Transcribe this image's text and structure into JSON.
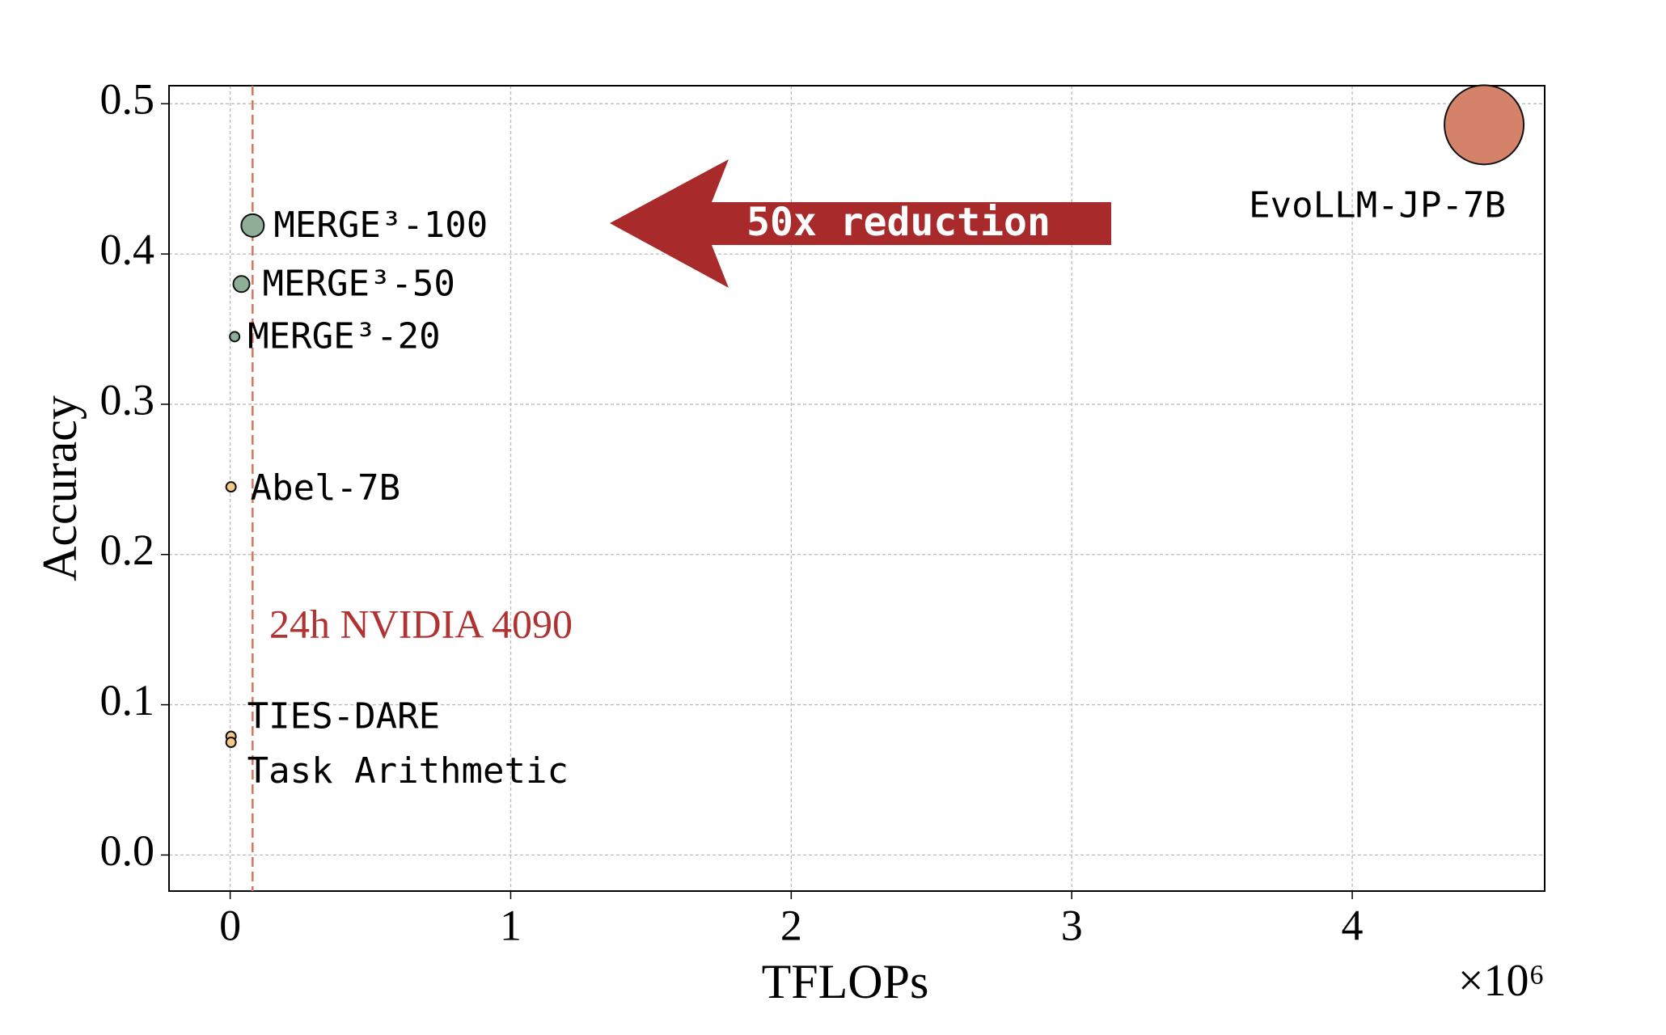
{
  "chart_data": {
    "type": "scatter",
    "x_label": "TFLOPs",
    "y_label": "Accuracy",
    "x_offset_label": "×10⁶",
    "point_labels": [
      "MERGE³-100",
      "MERGE³-50",
      "MERGE³-20",
      "Abel-7B",
      "TIES-DARE",
      "Task Arithmetic",
      "EvoLLM-JP-7B"
    ],
    "x": [
      0.08,
      0.04,
      0.016,
      0.003,
      0.003,
      0.003,
      4.47
    ],
    "values": [
      0.419,
      0.38,
      0.345,
      0.245,
      0.079,
      0.075,
      0.486
    ],
    "sizes": [
      14,
      10,
      6,
      6,
      6,
      6,
      49
    ],
    "colors": [
      "#8fae98",
      "#8fae98",
      "#8fae98",
      "#f5c88a",
      "#f5c88a",
      "#f5c88a",
      "#d4826a"
    ],
    "xlim": [
      -0.218,
      4.686
    ],
    "ylim": [
      -0.024,
      0.512
    ],
    "xticks": [
      0,
      1,
      2,
      3,
      4
    ],
    "yticks": [
      {
        "value": 0,
        "label": "0.0"
      },
      0.1,
      0.2,
      0.3,
      0.4,
      0.5
    ],
    "grid": true,
    "reference_line": {
      "x": 0.08,
      "label": "24h NVIDIA 4090",
      "color": "#d9735a",
      "label_color": "#b03333"
    },
    "annotation": {
      "text": "50x reduction",
      "color": "#a82a2a"
    }
  }
}
